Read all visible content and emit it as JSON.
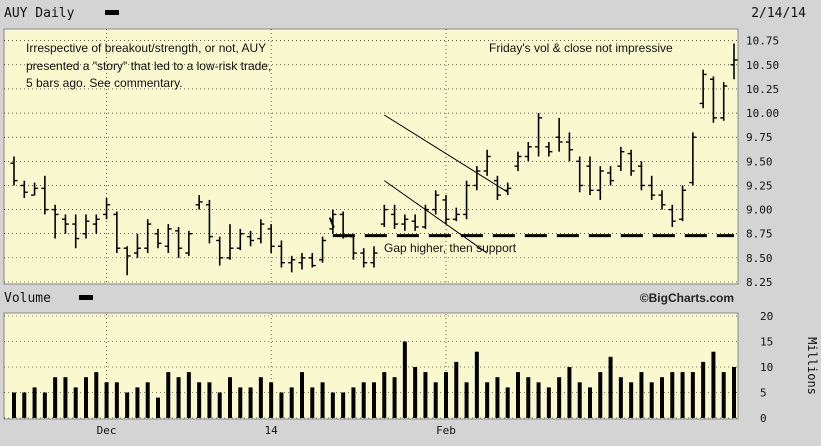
{
  "header": {
    "title": "AUY Daily",
    "date": "2/14/14",
    "volume_title": "Volume",
    "watermark": "©BigCharts.com",
    "volume_unit": "Millions"
  },
  "annotations": {
    "story_lines": [
      "Irrespective of breakout/strength, or not, AUY",
      "presented a \"story\" that led to a low-risk trade,",
      "5 bars ago.  See commentary."
    ],
    "friday_note": "Friday's vol & close not impressive",
    "gap_note": "Gap higher, then support"
  },
  "colors": {
    "panel_bg": "#f9f8cf",
    "frame_bg": "#d4d4d4",
    "bars": "#000000",
    "grid": "#000000"
  },
  "chart_data": [
    {
      "type": "ohlc",
      "title": "AUY Daily",
      "x_tick_labels": [
        "Dec",
        "14",
        "Feb"
      ],
      "x_tick_positions": [
        9,
        25,
        42
      ],
      "y_tick_labels": [
        "10.75",
        "10.50",
        "10.25",
        "10.00",
        "9.75",
        "9.50",
        "9.25",
        "9.00",
        "8.75",
        "8.50",
        "8.25"
      ],
      "ylim": [
        8.25,
        10.85
      ],
      "grid": true,
      "support_level": 8.73,
      "channel_upper": {
        "from": [
          36,
          9.98
        ],
        "to": [
          48,
          9.18
        ]
      },
      "channel_lower": {
        "from": [
          36,
          9.3
        ],
        "to": [
          46,
          8.55
        ]
      },
      "bars": [
        {
          "o": 9.48,
          "h": 9.55,
          "l": 9.25,
          "c": 9.3
        },
        {
          "o": 9.25,
          "h": 9.3,
          "l": 9.12,
          "c": 9.18
        },
        {
          "o": 9.15,
          "h": 9.28,
          "l": 9.15,
          "c": 9.22
        },
        {
          "o": 9.22,
          "h": 9.35,
          "l": 8.95,
          "c": 9.0
        },
        {
          "o": 9.0,
          "h": 9.05,
          "l": 8.7,
          "c": 8.95
        },
        {
          "o": 8.9,
          "h": 8.95,
          "l": 8.75,
          "c": 8.85
        },
        {
          "o": 8.85,
          "h": 8.95,
          "l": 8.6,
          "c": 8.7
        },
        {
          "o": 8.75,
          "h": 8.95,
          "l": 8.7,
          "c": 8.88
        },
        {
          "o": 8.85,
          "h": 8.95,
          "l": 8.75,
          "c": 8.9
        },
        {
          "o": 8.95,
          "h": 9.12,
          "l": 8.9,
          "c": 9.05
        },
        {
          "o": 8.95,
          "h": 8.98,
          "l": 8.55,
          "c": 8.6
        },
        {
          "o": 8.6,
          "h": 8.62,
          "l": 8.32,
          "c": 8.52
        },
        {
          "o": 8.55,
          "h": 8.75,
          "l": 8.5,
          "c": 8.6
        },
        {
          "o": 8.6,
          "h": 8.9,
          "l": 8.55,
          "c": 8.85
        },
        {
          "o": 8.75,
          "h": 8.8,
          "l": 8.6,
          "c": 8.65
        },
        {
          "o": 8.62,
          "h": 8.85,
          "l": 8.55,
          "c": 8.8
        },
        {
          "o": 8.78,
          "h": 8.82,
          "l": 8.5,
          "c": 8.6
        },
        {
          "o": 8.55,
          "h": 8.78,
          "l": 8.52,
          "c": 8.75
        },
        {
          "o": 9.05,
          "h": 9.15,
          "l": 9.0,
          "c": 9.08
        },
        {
          "o": 9.05,
          "h": 9.1,
          "l": 8.65,
          "c": 8.72
        },
        {
          "o": 8.68,
          "h": 8.72,
          "l": 8.42,
          "c": 8.5
        },
        {
          "o": 8.5,
          "h": 8.85,
          "l": 8.48,
          "c": 8.6
        },
        {
          "o": 8.6,
          "h": 8.8,
          "l": 8.58,
          "c": 8.75
        },
        {
          "o": 8.72,
          "h": 8.78,
          "l": 8.62,
          "c": 8.68
        },
        {
          "o": 8.7,
          "h": 8.9,
          "l": 8.65,
          "c": 8.85
        },
        {
          "o": 8.8,
          "h": 8.85,
          "l": 8.55,
          "c": 8.62
        },
        {
          "o": 8.62,
          "h": 8.68,
          "l": 8.4,
          "c": 8.45
        },
        {
          "o": 8.45,
          "h": 8.52,
          "l": 8.35,
          "c": 8.48
        },
        {
          "o": 8.45,
          "h": 8.55,
          "l": 8.38,
          "c": 8.5
        },
        {
          "o": 8.5,
          "h": 8.55,
          "l": 8.4,
          "c": 8.42
        },
        {
          "o": 8.48,
          "h": 8.72,
          "l": 8.45,
          "c": 8.68
        },
        {
          "o": 8.8,
          "h": 9.0,
          "l": 8.75,
          "c": 8.95
        },
        {
          "o": 8.95,
          "h": 8.98,
          "l": 8.7,
          "c": 8.72
        },
        {
          "o": 8.72,
          "h": 8.75,
          "l": 8.48,
          "c": 8.55
        },
        {
          "o": 8.55,
          "h": 8.6,
          "l": 8.4,
          "c": 8.45
        },
        {
          "o": 8.45,
          "h": 8.62,
          "l": 8.4,
          "c": 8.55
        },
        {
          "o": 8.85,
          "h": 9.05,
          "l": 8.82,
          "c": 9.0
        },
        {
          "o": 8.95,
          "h": 9.05,
          "l": 8.8,
          "c": 8.85
        },
        {
          "o": 8.85,
          "h": 8.95,
          "l": 8.78,
          "c": 8.9
        },
        {
          "o": 8.88,
          "h": 8.95,
          "l": 8.78,
          "c": 8.82
        },
        {
          "o": 8.82,
          "h": 9.05,
          "l": 8.8,
          "c": 9.0
        },
        {
          "o": 9.0,
          "h": 9.2,
          "l": 8.95,
          "c": 9.15
        },
        {
          "o": 9.1,
          "h": 9.15,
          "l": 8.85,
          "c": 8.9
        },
        {
          "o": 8.9,
          "h": 9.02,
          "l": 8.88,
          "c": 8.95
        },
        {
          "o": 8.95,
          "h": 9.3,
          "l": 8.9,
          "c": 9.25
        },
        {
          "o": 9.25,
          "h": 9.45,
          "l": 9.2,
          "c": 9.4
        },
        {
          "o": 9.4,
          "h": 9.62,
          "l": 9.35,
          "c": 9.55
        },
        {
          "o": 9.3,
          "h": 9.35,
          "l": 9.1,
          "c": 9.15
        },
        {
          "o": 9.2,
          "h": 9.28,
          "l": 9.15,
          "c": 9.22
        },
        {
          "o": 9.45,
          "h": 9.6,
          "l": 9.4,
          "c": 9.55
        },
        {
          "o": 9.55,
          "h": 9.7,
          "l": 9.5,
          "c": 9.65
        },
        {
          "o": 9.65,
          "h": 10.0,
          "l": 9.55,
          "c": 9.95
        },
        {
          "o": 9.65,
          "h": 9.7,
          "l": 9.55,
          "c": 9.6
        },
        {
          "o": 9.75,
          "h": 9.95,
          "l": 9.6,
          "c": 9.7
        },
        {
          "o": 9.7,
          "h": 9.8,
          "l": 9.5,
          "c": 9.62
        },
        {
          "o": 9.5,
          "h": 9.55,
          "l": 9.18,
          "c": 9.25
        },
        {
          "o": 9.45,
          "h": 9.55,
          "l": 9.15,
          "c": 9.2
        },
        {
          "o": 9.2,
          "h": 9.45,
          "l": 9.1,
          "c": 9.4
        },
        {
          "o": 9.38,
          "h": 9.45,
          "l": 9.25,
          "c": 9.3
        },
        {
          "o": 9.45,
          "h": 9.65,
          "l": 9.4,
          "c": 9.6
        },
        {
          "o": 9.58,
          "h": 9.62,
          "l": 9.35,
          "c": 9.4
        },
        {
          "o": 9.45,
          "h": 9.5,
          "l": 9.2,
          "c": 9.25
        },
        {
          "o": 9.25,
          "h": 9.35,
          "l": 9.1,
          "c": 9.15
        },
        {
          "o": 9.15,
          "h": 9.2,
          "l": 9.0,
          "c": 9.05
        },
        {
          "o": 9.0,
          "h": 9.05,
          "l": 8.82,
          "c": 8.88
        },
        {
          "o": 8.9,
          "h": 9.25,
          "l": 8.88,
          "c": 9.2
        },
        {
          "o": 9.28,
          "h": 9.8,
          "l": 9.25,
          "c": 9.75
        },
        {
          "o": 10.1,
          "h": 10.45,
          "l": 10.05,
          "c": 10.4
        },
        {
          "o": 10.35,
          "h": 10.38,
          "l": 9.9,
          "c": 9.95
        },
        {
          "o": 9.95,
          "h": 10.32,
          "l": 9.92,
          "c": 10.28
        },
        {
          "o": 10.5,
          "h": 10.72,
          "l": 10.35,
          "c": 10.55
        }
      ]
    },
    {
      "type": "bar",
      "title": "Volume",
      "ylabel": "Millions",
      "y_tick_labels": [
        "20",
        "15",
        "10",
        "5",
        "0"
      ],
      "ylim": [
        0,
        20
      ],
      "values": [
        5,
        5,
        6,
        5,
        8,
        8,
        6,
        8,
        9,
        7,
        7,
        5,
        6,
        7,
        4,
        9,
        8,
        9,
        7,
        7,
        5,
        8,
        6,
        6,
        8,
        7,
        5,
        6,
        9,
        6,
        7,
        5,
        5,
        6,
        7,
        7,
        9,
        8,
        15,
        10,
        9,
        7,
        9,
        11,
        7,
        13,
        7,
        8,
        6,
        9,
        8,
        7,
        6,
        8,
        10,
        7,
        6,
        9,
        12,
        8,
        7,
        9,
        7,
        8,
        9,
        9,
        9,
        11,
        13,
        9,
        10
      ]
    }
  ]
}
